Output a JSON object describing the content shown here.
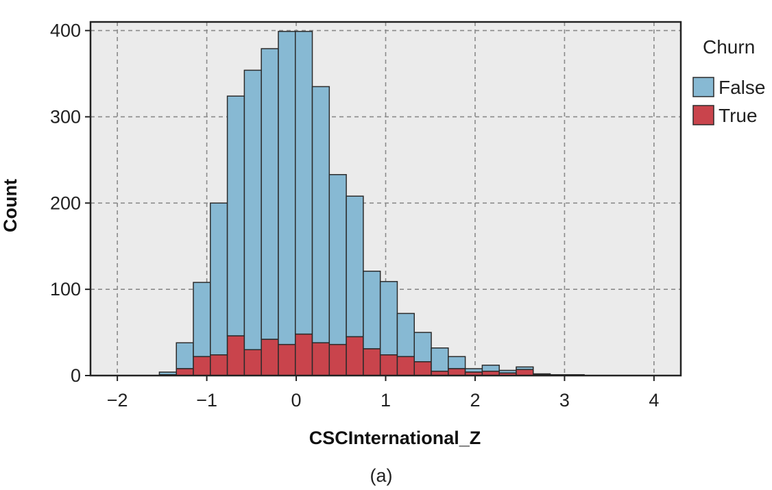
{
  "chart_data": {
    "type": "bar",
    "stacked": true,
    "xlabel": "CSCInternational_Z",
    "ylabel": "Count",
    "xlim": [
      -2.3,
      4.3
    ],
    "ylim": [
      0,
      410
    ],
    "x_ticks": [
      -2,
      -1,
      0,
      1,
      2,
      3,
      4
    ],
    "x_tick_labels": [
      "−2",
      "−1",
      "0",
      "1",
      "2",
      "3",
      "4"
    ],
    "y_ticks": [
      0,
      100,
      200,
      300,
      400
    ],
    "y_tick_labels": [
      "0",
      "100",
      "200",
      "300",
      "400"
    ],
    "grid": true,
    "legend_position": "right",
    "legend_title": "Churn",
    "bin_width": 0.19,
    "bin_starts": [
      -1.53,
      -1.34,
      -1.15,
      -0.96,
      -0.77,
      -0.58,
      -0.39,
      -0.2,
      -0.01,
      0.18,
      0.37,
      0.56,
      0.75,
      0.94,
      1.13,
      1.32,
      1.51,
      1.7,
      1.89,
      2.08,
      2.27,
      2.46,
      2.65,
      2.84,
      3.03
    ],
    "series": [
      {
        "name": "False",
        "color": "#87b9d3",
        "values": [
          3,
          30,
          86,
          176,
          278,
          324,
          337,
          363,
          351,
          297,
          197,
          163,
          90,
          85,
          50,
          34,
          27,
          14,
          4,
          7,
          3,
          3,
          1,
          1,
          1
        ]
      },
      {
        "name": "True",
        "color": "#c9444c",
        "values": [
          1,
          8,
          22,
          24,
          46,
          30,
          42,
          36,
          48,
          38,
          36,
          45,
          31,
          24,
          22,
          16,
          5,
          8,
          4,
          5,
          3,
          7,
          1,
          0,
          0
        ]
      }
    ]
  },
  "caption": "(a)"
}
